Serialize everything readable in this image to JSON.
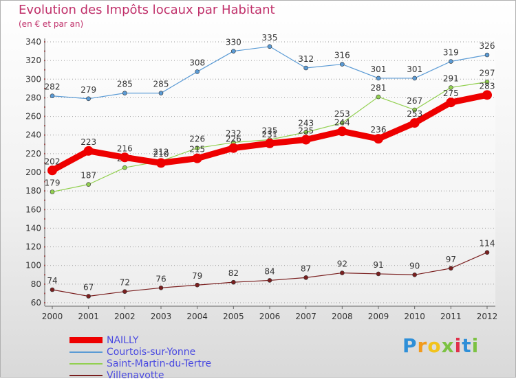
{
  "chart_data": {
    "type": "line",
    "title": "Evolution des Impôts locaux par Habitant",
    "subtitle": "(en € et par an)",
    "xlabel": "",
    "ylabel": "",
    "categories": [
      "2000",
      "2001",
      "2002",
      "2003",
      "2004",
      "2005",
      "2006",
      "2007",
      "2008",
      "2009",
      "2010",
      "2011",
      "2012"
    ],
    "ylim": [
      60,
      340
    ],
    "yticks": [
      60,
      80,
      100,
      120,
      140,
      160,
      180,
      200,
      220,
      240,
      260,
      280,
      300,
      320,
      340
    ],
    "grid": true,
    "legend_position": "bottom-left",
    "series": [
      {
        "name": "NAILLY",
        "color": "#ee0000",
        "emphasis": true,
        "values": [
          202,
          223,
          216,
          210,
          215,
          226,
          231,
          235,
          244,
          236,
          253,
          275,
          283
        ]
      },
      {
        "name": "Courtois-sur-Yonne",
        "color": "#5b9bd5",
        "emphasis": false,
        "values": [
          282,
          279,
          285,
          285,
          308,
          330,
          335,
          312,
          316,
          301,
          301,
          319,
          326
        ]
      },
      {
        "name": "Saint-Martin-du-Tertre",
        "color": "#92d050",
        "emphasis": false,
        "values": [
          179,
          187,
          205,
          212,
          226,
          232,
          235,
          243,
          253,
          281,
          267,
          291,
          297
        ]
      },
      {
        "name": "Villenavotte",
        "color": "#7a1f1f",
        "emphasis": false,
        "values": [
          74,
          67,
          72,
          76,
          79,
          82,
          84,
          87,
          92,
          91,
          90,
          97,
          114
        ]
      }
    ]
  },
  "brand": {
    "letters": [
      "P",
      "r",
      "o",
      "x",
      "i",
      "t",
      "i"
    ],
    "colors": [
      "#2e8fd8",
      "#f29a1c",
      "#f2c31c",
      "#7cc243",
      "#e0304a",
      "#2e8fd8",
      "#7cc243"
    ]
  }
}
